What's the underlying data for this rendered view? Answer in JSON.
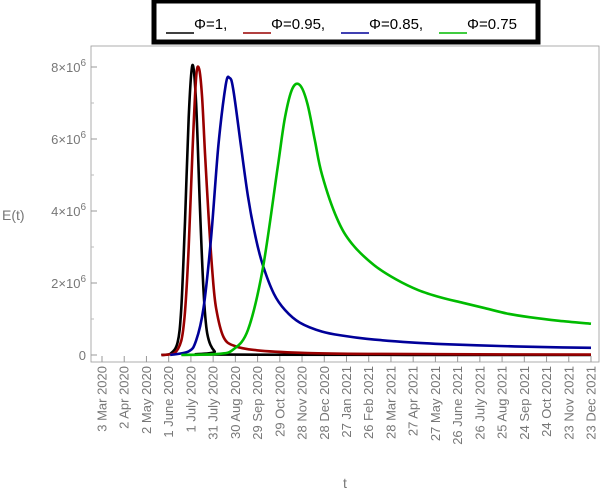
{
  "chart_data": {
    "type": "line",
    "xlabel": "t",
    "ylabel": "E(t)",
    "x_ticks": [
      "3 Mar 2020",
      "2 Apr 2020",
      "2 May 2020",
      "1 June 2020",
      "1 July 2020",
      "31 July 2020",
      "30 Aug 2020",
      "29 Sep 2020",
      "29 Oct 2020",
      "28 Nov 2020",
      "28 Dec 2020",
      "27 Jan 2021",
      "26 Feb 2021",
      "28 Mar 2021",
      "27 Apr 2021",
      "27 May 2021",
      "26 June 2021",
      "26 July 2021",
      "25 Aug 2021",
      "24 Sep 2021",
      "24 Oct 2021",
      "23 Nov 2021",
      "23 Dec 2021"
    ],
    "y_ticks": [
      {
        "value": 0,
        "base": "0",
        "exp": ""
      },
      {
        "value": 2000000,
        "base": "2×10",
        "exp": "6"
      },
      {
        "value": 4000000,
        "base": "4×10",
        "exp": "6"
      },
      {
        "value": 6000000,
        "base": "6×10",
        "exp": "6"
      },
      {
        "value": 8000000,
        "base": "8×10",
        "exp": "6"
      }
    ],
    "xlim": [
      "2020-03-03",
      "2021-12-23"
    ],
    "ylim": [
      0,
      8200000
    ],
    "grid": false,
    "legend_position": "top-center",
    "series": [
      {
        "name": "Φ=1",
        "color": "#000000",
        "x": [
          "2020-05-22",
          "2020-06-03",
          "2020-06-13",
          "2020-06-18",
          "2020-06-23",
          "2020-06-28",
          "2020-07-03",
          "2020-07-08",
          "2020-07-13",
          "2020-07-18",
          "2020-07-23",
          "2020-08-02",
          "2020-08-17",
          "2021-12-23"
        ],
        "y": [
          0,
          30000,
          350000,
          1300000,
          3700000,
          6600000,
          8050000,
          7000000,
          4200000,
          1800000,
          600000,
          100000,
          10000,
          0
        ]
      },
      {
        "name": "Φ=0.95",
        "color": "#990000",
        "x": [
          "2020-05-22",
          "2020-06-08",
          "2020-06-18",
          "2020-06-23",
          "2020-06-28",
          "2020-07-03",
          "2020-07-08",
          "2020-07-12",
          "2020-07-16",
          "2020-07-20",
          "2020-07-25",
          "2020-07-30",
          "2020-08-04",
          "2020-08-14",
          "2020-08-29",
          "2020-09-28",
          "2020-11-27",
          "2021-02-25",
          "2021-12-23"
        ],
        "y": [
          0,
          40000,
          400000,
          1200000,
          3000000,
          5600000,
          7700000,
          7950000,
          7200000,
          5600000,
          3800000,
          2300000,
          1300000,
          500000,
          250000,
          130000,
          60000,
          30000,
          10000
        ]
      },
      {
        "name": "Φ=0.85",
        "color": "#000099",
        "x": [
          "2020-06-03",
          "2020-06-28",
          "2020-07-08",
          "2020-07-18",
          "2020-07-28",
          "2020-08-07",
          "2020-08-17",
          "2020-08-22",
          "2020-08-27",
          "2020-09-06",
          "2020-09-16",
          "2020-09-26",
          "2020-10-06",
          "2020-10-21",
          "2020-11-05",
          "2020-11-25",
          "2020-12-25",
          "2021-01-24",
          "2021-02-23",
          "2021-04-24",
          "2021-06-23",
          "2021-08-22",
          "2021-10-21",
          "2021-12-23"
        ],
        "y": [
          0,
          100000,
          400000,
          1300000,
          3200000,
          5800000,
          7500000,
          7700000,
          7400000,
          5900000,
          4400000,
          3300000,
          2500000,
          1700000,
          1250000,
          900000,
          650000,
          530000,
          450000,
          350000,
          290000,
          250000,
          220000,
          200000
        ]
      },
      {
        "name": "Φ=0.75",
        "color": "#00bb00",
        "x": [
          "2020-06-18",
          "2020-08-07",
          "2020-08-27",
          "2020-09-16",
          "2020-10-06",
          "2020-10-26",
          "2020-11-05",
          "2020-11-15",
          "2020-11-25",
          "2020-12-05",
          "2020-12-15",
          "2020-12-25",
          "2021-01-14",
          "2021-02-03",
          "2021-03-05",
          "2021-04-04",
          "2021-05-04",
          "2021-06-03",
          "2021-07-03",
          "2021-08-02",
          "2021-09-01",
          "2021-10-01",
          "2021-11-10",
          "2021-12-23"
        ],
        "y": [
          0,
          30000,
          150000,
          700000,
          2400000,
          5200000,
          6600000,
          7400000,
          7500000,
          7000000,
          6000000,
          5000000,
          3800000,
          3100000,
          2500000,
          2100000,
          1800000,
          1600000,
          1450000,
          1300000,
          1150000,
          1050000,
          950000,
          870000
        ]
      }
    ]
  }
}
